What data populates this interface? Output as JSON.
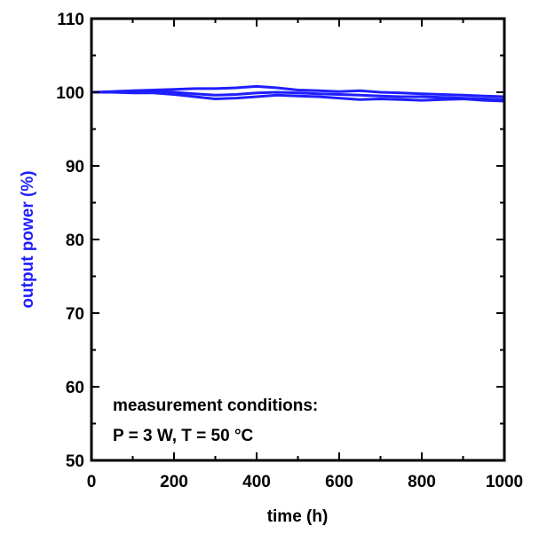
{
  "chart_data": {
    "type": "line",
    "xlabel": "time (h)",
    "ylabel": "output power (%)",
    "xlim": [
      0,
      1000
    ],
    "ylim": [
      50,
      110
    ],
    "x_ticks": [
      0,
      200,
      400,
      600,
      800,
      1000
    ],
    "y_ticks": [
      50,
      60,
      70,
      80,
      90,
      100,
      110
    ],
    "grid": false,
    "legend": "none",
    "annotation": {
      "lines": [
        "measurement conditions:",
        "P = 3 W, T = 50 °C"
      ]
    },
    "series": [
      {
        "color": "#1f1fff",
        "x": [
          0,
          50,
          100,
          150,
          200,
          250,
          300,
          350,
          400,
          450,
          500,
          550,
          600,
          650,
          700,
          750,
          800,
          850,
          900,
          950,
          1000
        ],
        "y": [
          100.0,
          100.1,
          100.2,
          100.3,
          100.4,
          100.5,
          100.5,
          100.6,
          100.8,
          100.6,
          100.3,
          100.2,
          100.1,
          100.2,
          100.0,
          99.9,
          99.8,
          99.7,
          99.6,
          99.5,
          99.4
        ]
      },
      {
        "color": "#1f1fff",
        "x": [
          0,
          50,
          100,
          150,
          200,
          250,
          300,
          350,
          400,
          450,
          500,
          550,
          600,
          650,
          700,
          750,
          800,
          850,
          900,
          950,
          1000
        ],
        "y": [
          100.0,
          100.0,
          100.1,
          100.1,
          100.0,
          99.8,
          99.6,
          99.7,
          99.9,
          100.0,
          99.9,
          99.8,
          99.7,
          99.6,
          99.5,
          99.4,
          99.4,
          99.3,
          99.2,
          99.1,
          99.0
        ]
      },
      {
        "color": "#1f1fff",
        "x": [
          0,
          50,
          100,
          150,
          200,
          250,
          300,
          350,
          400,
          450,
          500,
          550,
          600,
          650,
          700,
          750,
          800,
          850,
          900,
          950,
          1000
        ],
        "y": [
          100.0,
          100.0,
          99.9,
          99.9,
          99.7,
          99.4,
          99.1,
          99.2,
          99.4,
          99.6,
          99.5,
          99.4,
          99.2,
          99.0,
          99.1,
          99.0,
          98.9,
          99.0,
          99.1,
          98.9,
          98.8
        ]
      }
    ]
  }
}
